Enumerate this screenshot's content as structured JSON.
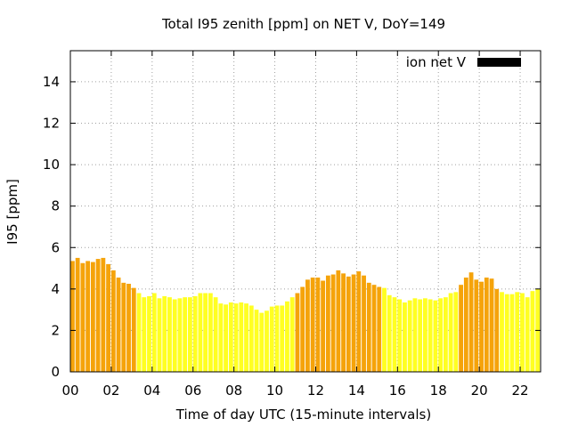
{
  "chart_data": {
    "type": "bar",
    "title": "Total I95 zenith [ppm] on NET V, DoY=149",
    "xlabel": "Time of day UTC (15-minute intervals)",
    "ylabel": "I95 [ppm]",
    "xlim": [
      0,
      23
    ],
    "ylim": [
      0,
      15.5
    ],
    "x_ticks": [
      "00",
      "02",
      "04",
      "06",
      "08",
      "10",
      "12",
      "14",
      "16",
      "18",
      "20",
      "22"
    ],
    "x_tick_hours": [
      0,
      2,
      4,
      6,
      8,
      10,
      12,
      14,
      16,
      18,
      20,
      22
    ],
    "y_ticks": [
      0,
      2,
      4,
      6,
      8,
      10,
      12,
      14
    ],
    "grid": true,
    "legend_position": "top-right",
    "series": [
      {
        "name": "ion net V",
        "legend_color": "#000000",
        "bar_colors": {
          "low": "#ffff22",
          "high": "#f5a30a"
        },
        "bar_width_hours": 0.21,
        "x_hours": [
          0.0,
          0.25,
          0.5,
          0.75,
          1.0,
          1.25,
          1.5,
          1.75,
          2.0,
          2.25,
          2.5,
          2.75,
          3.0,
          3.25,
          3.5,
          3.75,
          4.0,
          4.25,
          4.5,
          4.75,
          5.0,
          5.25,
          5.5,
          5.75,
          6.0,
          6.25,
          6.5,
          6.75,
          7.0,
          7.25,
          7.5,
          7.75,
          8.0,
          8.25,
          8.5,
          8.75,
          9.0,
          9.25,
          9.5,
          9.75,
          10.0,
          10.25,
          10.5,
          10.75,
          11.0,
          11.25,
          11.5,
          11.75,
          12.0,
          12.25,
          12.5,
          12.75,
          13.0,
          13.25,
          13.5,
          13.75,
          14.0,
          14.25,
          14.5,
          14.75,
          15.0,
          15.25,
          15.5,
          15.75,
          16.0,
          16.25,
          16.5,
          16.75,
          17.0,
          17.25,
          17.5,
          17.75,
          18.0,
          18.25,
          18.5,
          18.75,
          19.0,
          19.25,
          19.5,
          19.75,
          20.0,
          20.25,
          20.5,
          20.75,
          21.0,
          21.25,
          21.5,
          21.75,
          22.0,
          22.25,
          22.5,
          22.75
        ],
        "values": [
          5.35,
          5.5,
          5.25,
          5.35,
          5.3,
          5.45,
          5.5,
          5.2,
          4.9,
          4.55,
          4.3,
          4.25,
          4.05,
          3.8,
          3.6,
          3.65,
          3.8,
          3.55,
          3.65,
          3.6,
          3.5,
          3.55,
          3.6,
          3.6,
          3.65,
          3.8,
          3.8,
          3.8,
          3.6,
          3.3,
          3.25,
          3.35,
          3.3,
          3.35,
          3.3,
          3.2,
          3.0,
          2.85,
          2.95,
          3.15,
          3.2,
          3.2,
          3.4,
          3.6,
          3.8,
          4.1,
          4.45,
          4.55,
          4.55,
          4.4,
          4.65,
          4.7,
          4.9,
          4.75,
          4.6,
          4.7,
          4.85,
          4.65,
          4.3,
          4.2,
          4.1,
          4.05,
          3.7,
          3.6,
          3.5,
          3.35,
          3.45,
          3.55,
          3.5,
          3.55,
          3.5,
          3.45,
          3.55,
          3.6,
          3.8,
          3.85,
          4.2,
          4.55,
          4.8,
          4.45,
          4.35,
          4.55,
          4.5,
          4.0,
          3.85,
          3.75,
          3.75,
          3.85,
          3.8,
          3.6,
          3.9,
          4.0
        ],
        "is_high": [
          1,
          1,
          1,
          1,
          1,
          1,
          1,
          1,
          1,
          1,
          1,
          1,
          1,
          0,
          0,
          0,
          0,
          0,
          0,
          0,
          0,
          0,
          0,
          0,
          0,
          0,
          0,
          0,
          0,
          0,
          0,
          0,
          0,
          0,
          0,
          0,
          0,
          0,
          0,
          0,
          0,
          0,
          0,
          0,
          1,
          1,
          1,
          1,
          1,
          1,
          1,
          1,
          1,
          1,
          1,
          1,
          1,
          1,
          1,
          1,
          1,
          0,
          0,
          0,
          0,
          0,
          0,
          0,
          0,
          0,
          0,
          0,
          0,
          0,
          0,
          0,
          1,
          1,
          1,
          1,
          1,
          1,
          1,
          1,
          0,
          0,
          0,
          0,
          0,
          0,
          0,
          0
        ]
      }
    ]
  }
}
